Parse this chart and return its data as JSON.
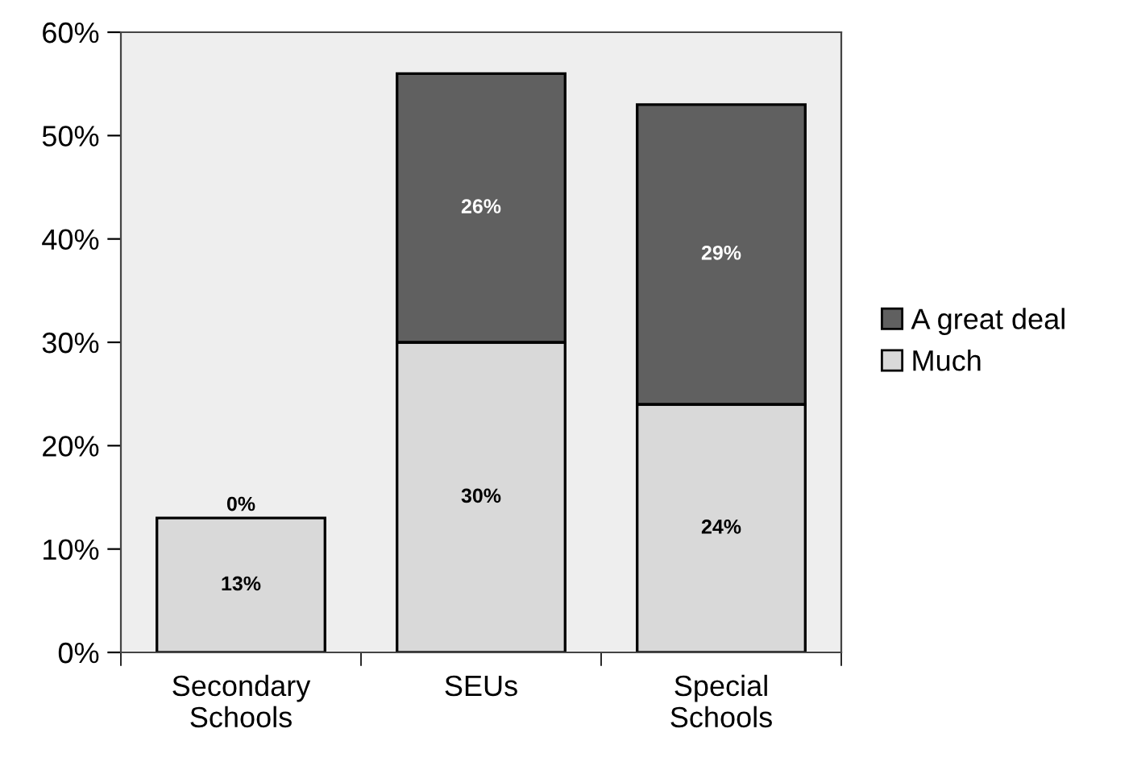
{
  "chart_data": {
    "type": "bar",
    "stacked": true,
    "categories": [
      "Secondary\nSchools",
      "SEUs",
      "Special\nSchools"
    ],
    "series": [
      {
        "name": "Much",
        "color": "#d9d9d9",
        "values": [
          13,
          30,
          24
        ],
        "value_labels": [
          "13%",
          "30%",
          "24%"
        ]
      },
      {
        "name": "A great deal",
        "color": "#606060",
        "values": [
          0,
          26,
          29
        ],
        "value_labels": [
          "0%",
          "26%",
          "29%"
        ]
      }
    ],
    "ylim": [
      0,
      60
    ],
    "yticks": [
      {
        "value": 0,
        "label": "0%"
      },
      {
        "value": 10,
        "label": "10%"
      },
      {
        "value": 20,
        "label": "20%"
      },
      {
        "value": 30,
        "label": "30%"
      },
      {
        "value": 40,
        "label": "40%"
      },
      {
        "value": 50,
        "label": "50%"
      },
      {
        "value": 60,
        "label": "60%"
      }
    ],
    "grid": false,
    "legend": "right"
  }
}
